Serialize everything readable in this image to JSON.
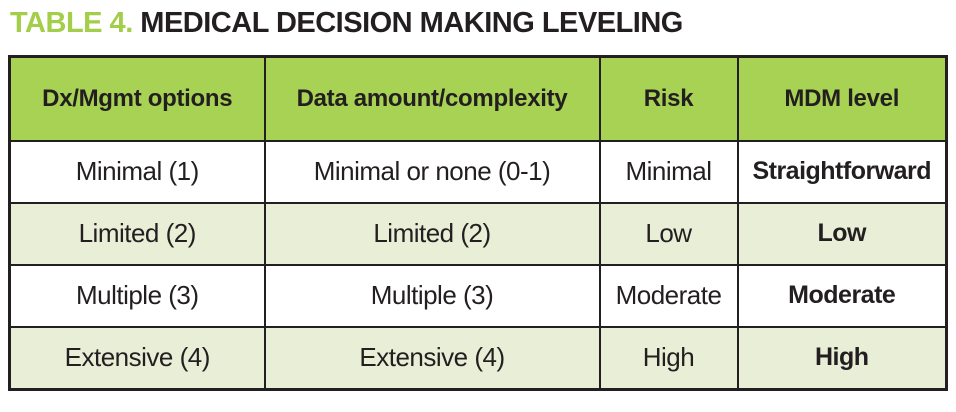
{
  "title": {
    "prefix": "TABLE 4.",
    "text": " MEDICAL DECISION MAKING LEVELING"
  },
  "colors": {
    "title_accent": "#a2ce49",
    "header_bg": "#a8d253",
    "row_alt_bg": "#e9eed7",
    "row_bg": "#ffffff",
    "border": "#231f20",
    "text": "#231f20"
  },
  "table": {
    "headers": [
      "Dx/Mgmt options",
      "Data amount/complexity",
      "Risk",
      "MDM level"
    ],
    "rows": [
      {
        "cells": [
          "Minimal (1)",
          "Minimal or none (0-1)",
          "Minimal",
          "Straightforward"
        ]
      },
      {
        "cells": [
          "Limited (2)",
          "Limited (2)",
          "Low",
          "Low"
        ]
      },
      {
        "cells": [
          "Multiple (3)",
          "Multiple (3)",
          "Moderate",
          "Moderate"
        ]
      },
      {
        "cells": [
          "Extensive (4)",
          "Extensive (4)",
          "High",
          "High"
        ]
      }
    ]
  }
}
